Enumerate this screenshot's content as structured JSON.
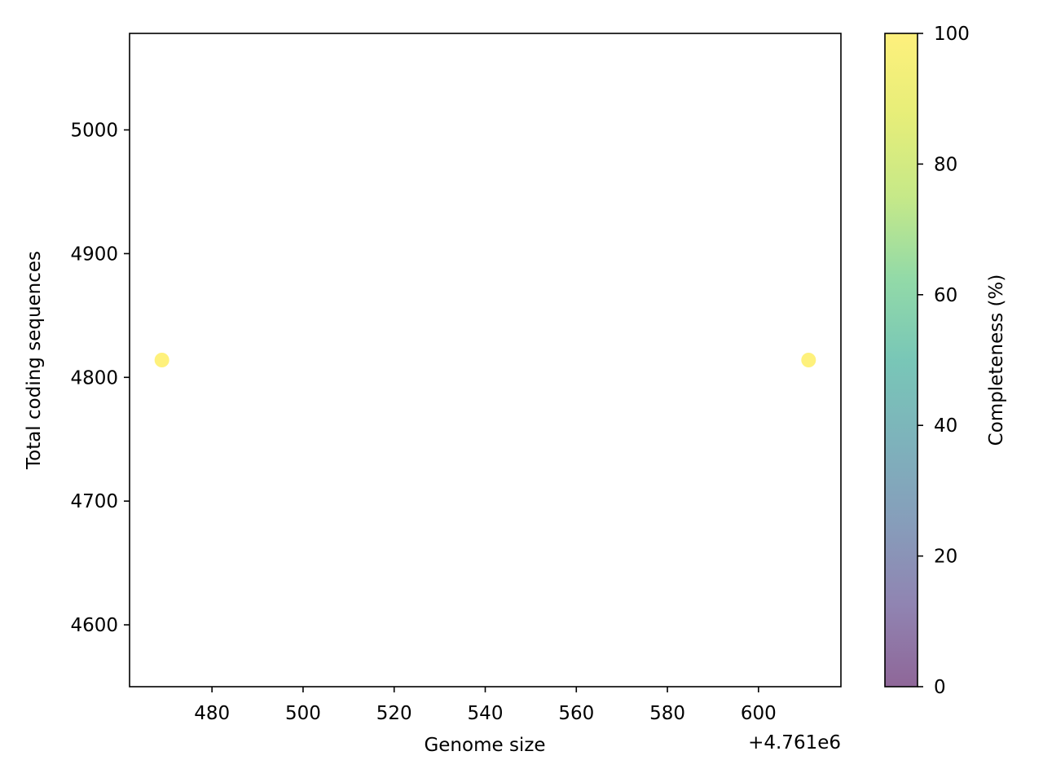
{
  "chart_data": {
    "type": "scatter",
    "title": "",
    "xlabel": "Genome size",
    "ylabel": "Total coding sequences",
    "x_offset_label": "+4.761e6",
    "xlim": [
      4761461.9,
      4761618.1
    ],
    "ylim": [
      4550,
      5078
    ],
    "x_ticks": [
      4761480,
      4761500,
      4761520,
      4761540,
      4761560,
      4761580,
      4761600
    ],
    "x_tick_labels": [
      "480",
      "500",
      "520",
      "540",
      "560",
      "580",
      "600"
    ],
    "y_ticks": [
      4600,
      4700,
      4800,
      4900,
      5000
    ],
    "y_tick_labels": [
      "4600",
      "4700",
      "4800",
      "4900",
      "5000"
    ],
    "points": [
      {
        "x": 4761469,
        "y": 4814,
        "completeness": 100
      },
      {
        "x": 4761611,
        "y": 4814,
        "completeness": 100
      }
    ],
    "colorbar": {
      "label": "Completeness (%)",
      "range": [
        0,
        100
      ],
      "ticks": [
        0,
        20,
        40,
        60,
        80,
        100
      ],
      "tick_labels": [
        "0",
        "20",
        "40",
        "60",
        "80",
        "100"
      ],
      "colormap": "viridis",
      "alpha": 0.6
    },
    "grid": false,
    "legend": "none"
  }
}
